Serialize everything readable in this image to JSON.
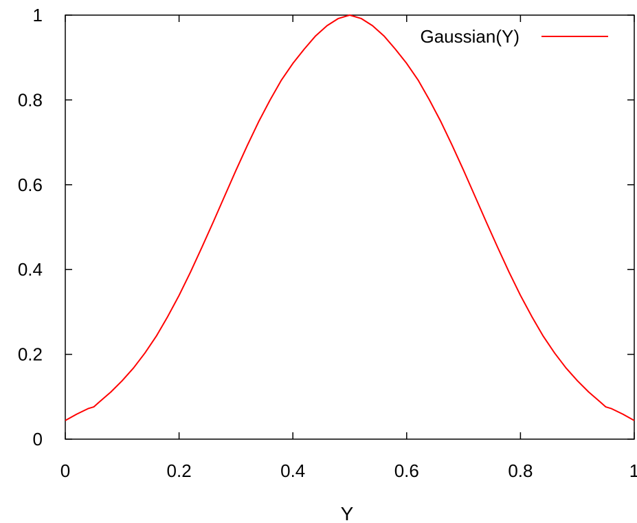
{
  "chart_data": {
    "type": "line",
    "title": "",
    "xlabel": "Y",
    "ylabel": "",
    "xlim": [
      0,
      1
    ],
    "ylim": [
      0,
      1
    ],
    "grid": false,
    "legend_position": "top-right",
    "x_ticks": [
      0,
      0.2,
      0.4,
      0.6,
      0.8,
      1
    ],
    "x_tick_labels": [
      "0",
      "0.2",
      "0.4",
      "0.6",
      "0.8",
      "1"
    ],
    "y_ticks": [
      0,
      0.2,
      0.4,
      0.6,
      0.8,
      1
    ],
    "y_tick_labels": [
      "0",
      "0.2",
      "0.4",
      "0.6",
      "0.8",
      "1"
    ],
    "series": [
      {
        "name": "Gaussian(Y)",
        "color": "#ff0000",
        "x": [
          0,
          0.02,
          0.04,
          0.05,
          0.06,
          0.08,
          0.1,
          0.12,
          0.14,
          0.16,
          0.18,
          0.2,
          0.22,
          0.24,
          0.26,
          0.28,
          0.3,
          0.32,
          0.34,
          0.36,
          0.38,
          0.4,
          0.42,
          0.44,
          0.46,
          0.48,
          0.5,
          0.52,
          0.54,
          0.56,
          0.58,
          0.6,
          0.62,
          0.64,
          0.66,
          0.68,
          0.7,
          0.72,
          0.74,
          0.76,
          0.78,
          0.8,
          0.82,
          0.84,
          0.86,
          0.88,
          0.9,
          0.92,
          0.94,
          0.95,
          0.96,
          0.98,
          1.0
        ],
        "y": [
          0.044,
          0.059,
          0.072,
          0.076,
          0.088,
          0.111,
          0.138,
          0.168,
          0.203,
          0.243,
          0.289,
          0.339,
          0.394,
          0.452,
          0.512,
          0.573,
          0.634,
          0.693,
          0.749,
          0.8,
          0.847,
          0.886,
          0.92,
          0.951,
          0.975,
          0.992,
          1.0,
          0.992,
          0.975,
          0.951,
          0.92,
          0.886,
          0.847,
          0.8,
          0.749,
          0.693,
          0.634,
          0.573,
          0.512,
          0.452,
          0.394,
          0.339,
          0.289,
          0.243,
          0.203,
          0.168,
          0.138,
          0.111,
          0.088,
          0.076,
          0.072,
          0.059,
          0.044
        ]
      }
    ]
  }
}
